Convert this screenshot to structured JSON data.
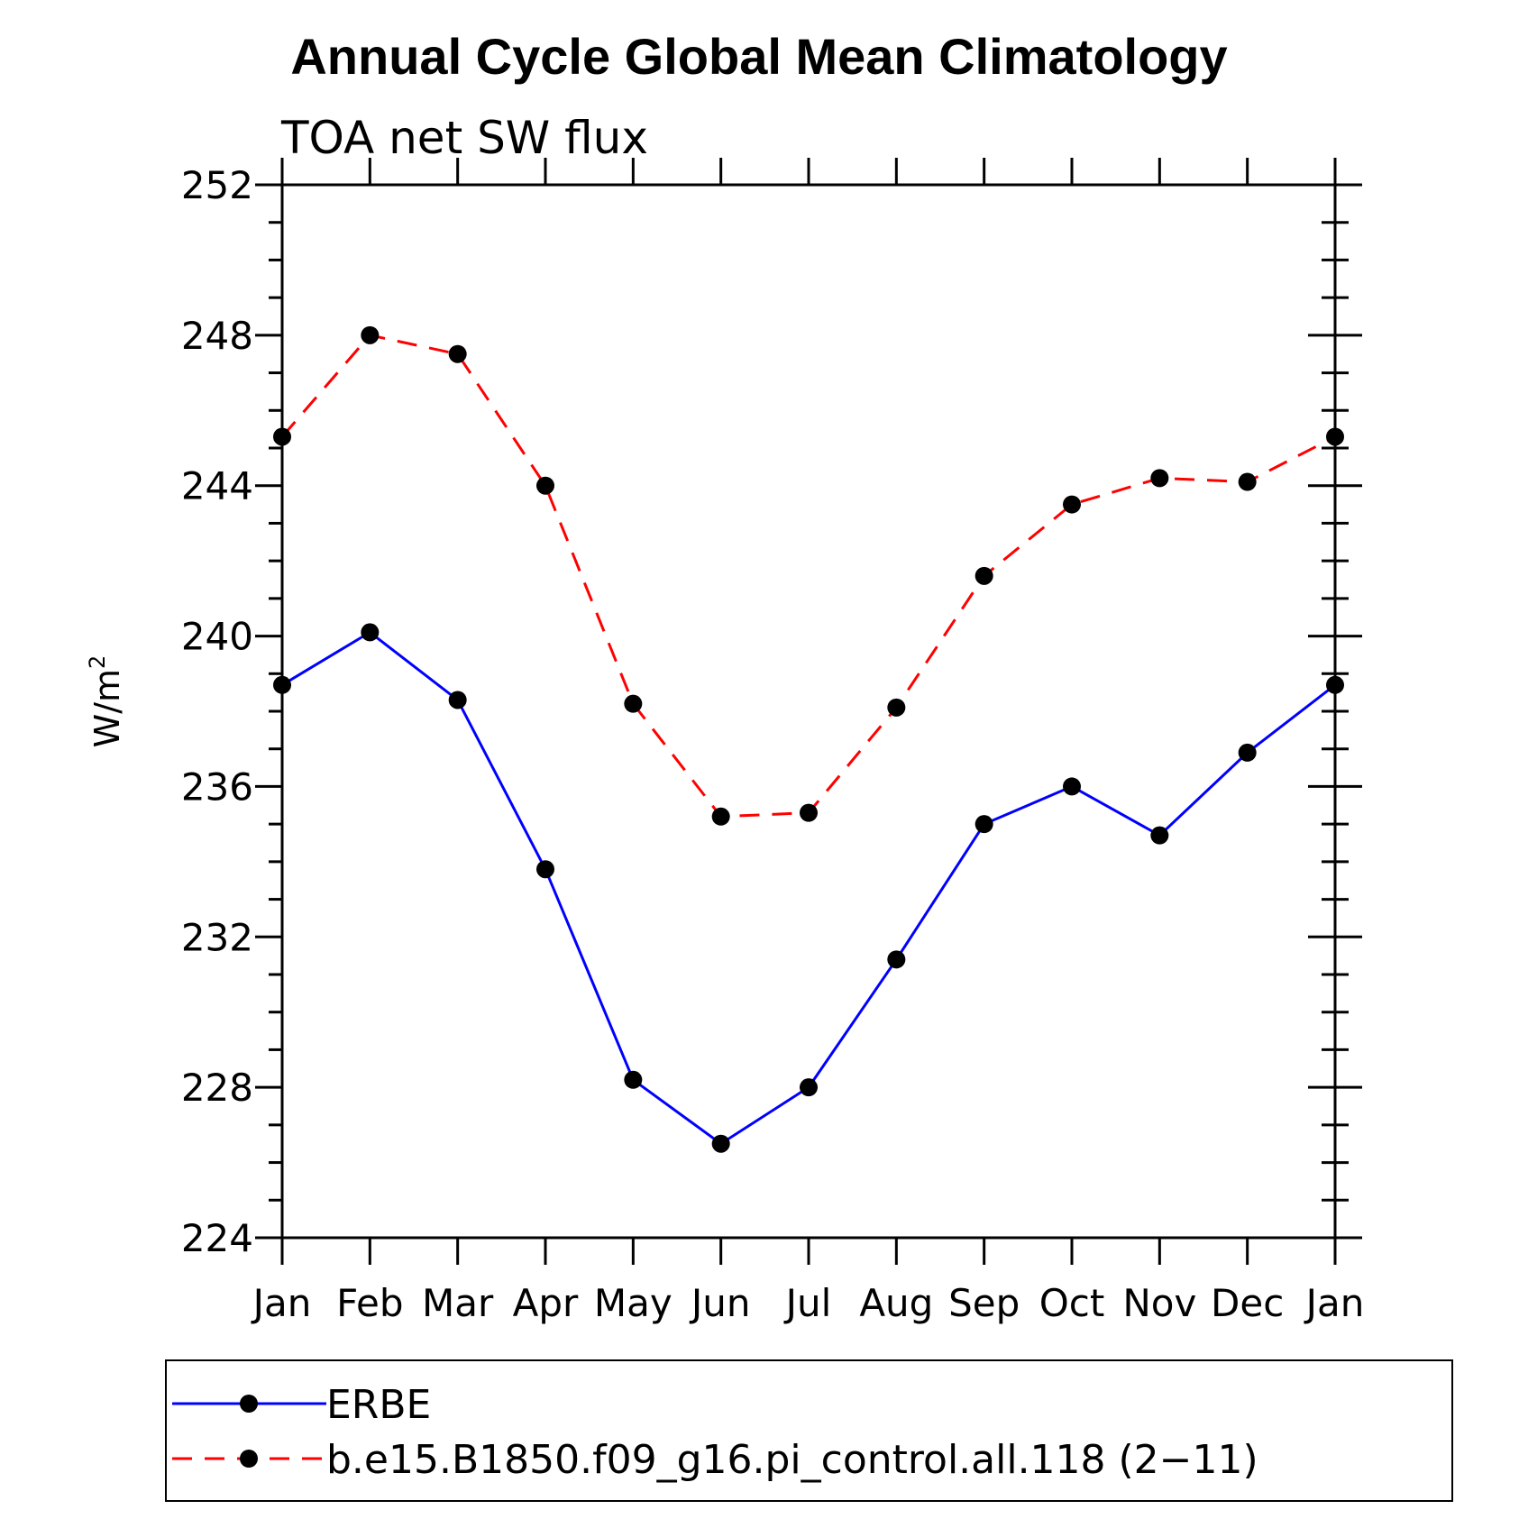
{
  "chart_data": {
    "type": "line",
    "title": "Annual Cycle Global Mean Climatology",
    "subtitle": "TOA net SW flux",
    "xlabel": "",
    "ylabel": "W/m",
    "ylabel_superscript": "2",
    "categories": [
      "Jan",
      "Feb",
      "Mar",
      "Apr",
      "May",
      "Jun",
      "Jul",
      "Aug",
      "Sep",
      "Oct",
      "Nov",
      "Dec",
      "Jan"
    ],
    "ylim": [
      224,
      252
    ],
    "yticks": [
      224,
      228,
      232,
      236,
      240,
      244,
      248,
      252
    ],
    "yticks_labels": [
      "224",
      "228",
      "232",
      "236",
      "240",
      "244",
      "248",
      "252"
    ],
    "series": [
      {
        "name": "ERBE",
        "color": "#0000ff",
        "dash": "solid",
        "marker": "circle",
        "values": [
          238.7,
          240.1,
          238.3,
          233.8,
          228.2,
          226.5,
          228.0,
          231.4,
          235.0,
          236.0,
          234.7,
          236.9,
          238.7
        ]
      },
      {
        "name": "b.e15.B1850.f09_g16.pi_control.all.118 (2−11)",
        "color": "#ff0000",
        "dash": "dashed",
        "marker": "circle",
        "values": [
          245.3,
          248.0,
          247.5,
          244.0,
          238.2,
          235.2,
          235.3,
          238.1,
          241.6,
          243.5,
          244.2,
          244.1,
          245.3
        ]
      }
    ],
    "legend_position": "bottom"
  }
}
